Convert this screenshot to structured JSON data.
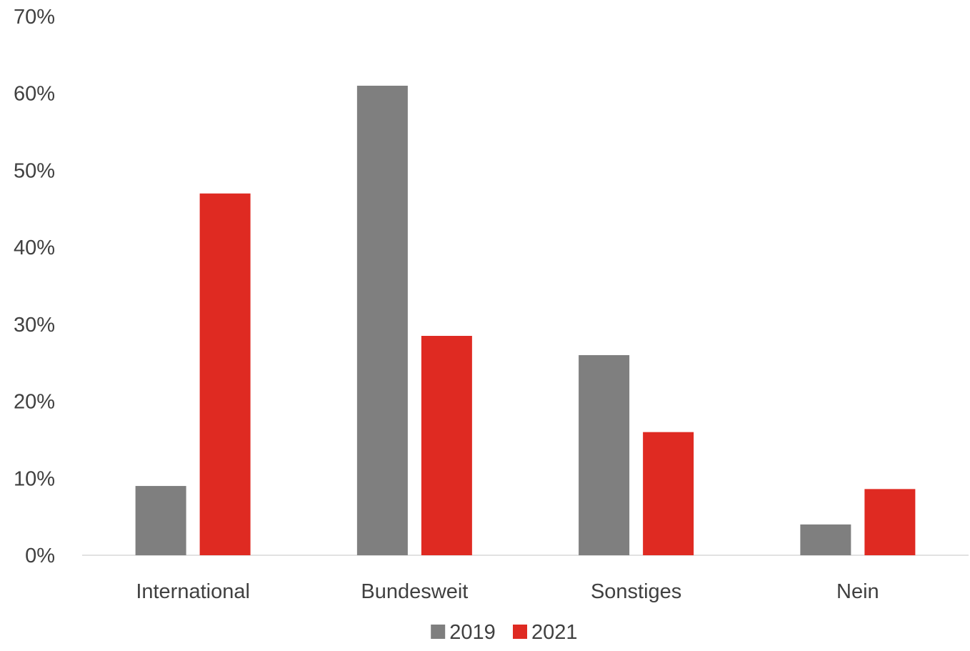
{
  "chart_data": {
    "type": "bar",
    "title": "",
    "xlabel": "",
    "ylabel": "",
    "categories": [
      "International",
      "Bundesweit",
      "Sonstiges",
      "Nein"
    ],
    "series": [
      {
        "name": "2019",
        "color": "#7f7f7f",
        "values": [
          9,
          61,
          26,
          4
        ]
      },
      {
        "name": "2021",
        "color": "#df2a22",
        "values": [
          47,
          28.5,
          16,
          8.6
        ]
      }
    ],
    "ylim": [
      0,
      70
    ],
    "y_ticks": [
      0,
      10,
      20,
      30,
      40,
      50,
      60,
      70
    ],
    "y_tick_labels": [
      "0%",
      "10%",
      "20%",
      "30%",
      "40%",
      "50%",
      "60%",
      "70%"
    ],
    "value_format": "percent",
    "grid": false,
    "legend_position": "bottom"
  }
}
